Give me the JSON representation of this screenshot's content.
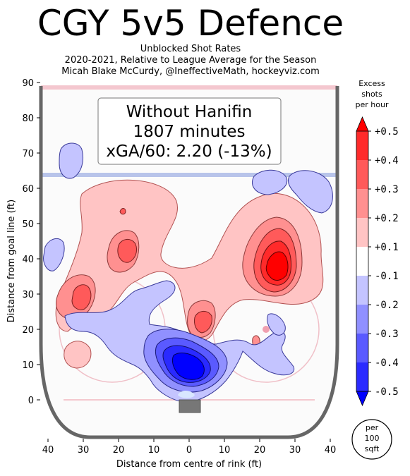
{
  "title": "CGY 5v5 Defence",
  "subtitle_lines": [
    "Unblocked Shot Rates",
    "2020-2021, Relative to League Average for the Season",
    "Micah Blake McCurdy, @IneffectiveMath, hockeyviz.com"
  ],
  "chart_data": {
    "type": "heatmap",
    "title": "CGY 5v5 Defence",
    "xlabel": "Distance from centre of rink (ft)",
    "ylabel": "Distance from goal line (ft)",
    "xlim": [
      -40,
      40
    ],
    "ylim": [
      -11,
      90
    ],
    "x_ticks": [
      "40",
      "30",
      "20",
      "10",
      "0",
      "10",
      "20",
      "30",
      "40"
    ],
    "x_tick_values": [
      -40,
      -30,
      -20,
      -10,
      0,
      10,
      20,
      30,
      40
    ],
    "y_ticks": [
      "0",
      "10",
      "20",
      "30",
      "40",
      "50",
      "60",
      "70",
      "80",
      "90"
    ],
    "y_tick_values": [
      0,
      10,
      20,
      30,
      40,
      50,
      60,
      70,
      80,
      90
    ],
    "annotation": {
      "line1": "Without Hanifin",
      "line2": "1807 minutes",
      "line3": "xGA/60: 2.20 (-13%)"
    },
    "colorbar": {
      "title_lines": [
        "Excess",
        "shots",
        "per hour"
      ],
      "labels": [
        "+0.5",
        "+0.4",
        "+0.3",
        "+0.2",
        "+0.1",
        "-0.1",
        "-0.2",
        "-0.3",
        "-0.4",
        "-0.5"
      ],
      "levels": [
        0.5,
        0.4,
        0.3,
        0.2,
        0.1,
        -0.1,
        -0.2,
        -0.3,
        -0.4,
        -0.5
      ],
      "colors": [
        "#ff0000",
        "#ff2a2a",
        "#ff5a5a",
        "#ff9090",
        "#ffc4c4",
        "#ffffff",
        "#c4c4ff",
        "#9090ff",
        "#5a5aff",
        "#2a2aff",
        "#0000ff"
      ],
      "unit_lines": [
        "per",
        "100",
        "sqft"
      ]
    },
    "regions": [
      {
        "sign": "positive",
        "level": 0.1,
        "x": -18,
        "y": 52
      },
      {
        "sign": "positive",
        "level": 0.1,
        "x": 20,
        "y": 42
      },
      {
        "sign": "positive",
        "level": 0.2,
        "x": -30,
        "y": 28
      },
      {
        "sign": "positive",
        "level": 0.2,
        "x": -18,
        "y": 42
      },
      {
        "sign": "positive",
        "level": 0.3,
        "x": 24,
        "y": 39
      },
      {
        "sign": "positive",
        "level": 0.4,
        "x": 25,
        "y": 38
      },
      {
        "sign": "positive",
        "level": 0.2,
        "x": 4,
        "y": 22
      },
      {
        "sign": "negative",
        "level": -0.1,
        "x": -30,
        "y": 68
      },
      {
        "sign": "negative",
        "level": -0.1,
        "x": 22,
        "y": 62
      },
      {
        "sign": "negative",
        "level": -0.1,
        "x": 37,
        "y": 65
      },
      {
        "sign": "negative",
        "level": -0.1,
        "x": -40,
        "y": 42
      },
      {
        "sign": "negative",
        "level": -0.1,
        "x": -5,
        "y": 20
      },
      {
        "sign": "negative",
        "level": -0.2,
        "x": 2,
        "y": 11
      },
      {
        "sign": "negative",
        "level": -0.3,
        "x": 2,
        "y": 10
      },
      {
        "sign": "negative",
        "level": -0.5,
        "x": 1,
        "y": 10
      }
    ]
  }
}
